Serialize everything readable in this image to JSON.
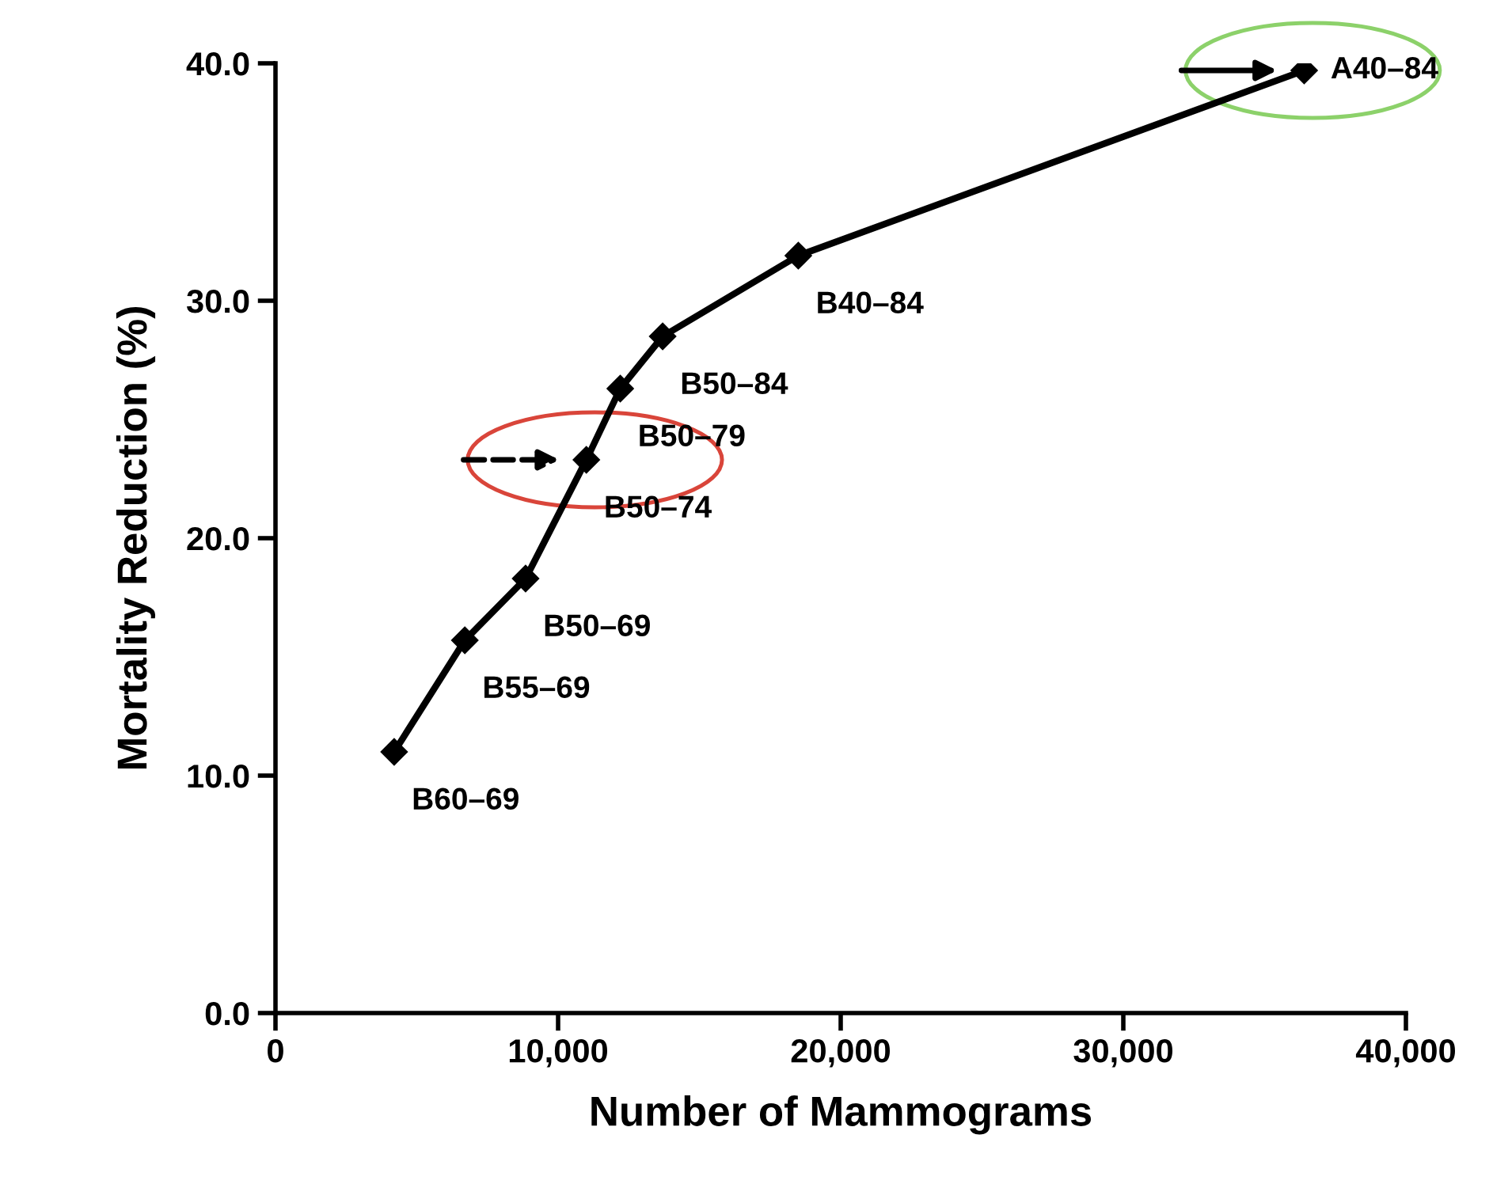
{
  "chart_data": {
    "type": "line",
    "xlabel": "Number of Mammograms",
    "ylabel": "Mortality Reduction (%)",
    "x": [
      4200,
      6700,
      8850,
      11000,
      12200,
      13700,
      18500,
      36400
    ],
    "series": [
      {
        "color": "#000000",
        "values": [
          11.0,
          15.7,
          18.3,
          23.3,
          26.3,
          28.5,
          31.9,
          39.7
        ]
      }
    ],
    "marker": "diamond",
    "line_style": "solid",
    "grid": false,
    "legend": false,
    "xlim": [
      0,
      40000
    ],
    "ylim": [
      0,
      40
    ],
    "xticks": [
      0,
      {
        "value": 10000,
        "label": "10,000"
      },
      {
        "value": 20000,
        "label": "20,000"
      },
      {
        "value": 30000,
        "label": "30,000"
      },
      {
        "value": 40000,
        "label": "40,000"
      }
    ],
    "yticks": [
      {
        "value": 0,
        "label": "0.0"
      },
      {
        "value": 10,
        "label": "10.0"
      },
      {
        "value": 20,
        "label": "20.0"
      },
      {
        "value": 30,
        "label": "30.0"
      },
      {
        "value": 40,
        "label": "40.0"
      }
    ],
    "annotations": [
      {
        "text": "B60–69",
        "x": 4200,
        "y": 11.0
      },
      {
        "text": "B55–69",
        "x": 6700,
        "y": 15.7
      },
      {
        "text": "B50–69",
        "x": 8850,
        "y": 18.3
      },
      {
        "text": "B50–74",
        "x": 11000,
        "y": 23.3
      },
      {
        "text": "B50–79",
        "x": 12200,
        "y": 26.3
      },
      {
        "text": "B50–84",
        "x": 13700,
        "y": 28.5
      },
      {
        "text": "B40–84",
        "x": 18500,
        "y": 31.9
      },
      {
        "text": "A40–84",
        "x": 36400,
        "y": 39.7
      }
    ]
  }
}
